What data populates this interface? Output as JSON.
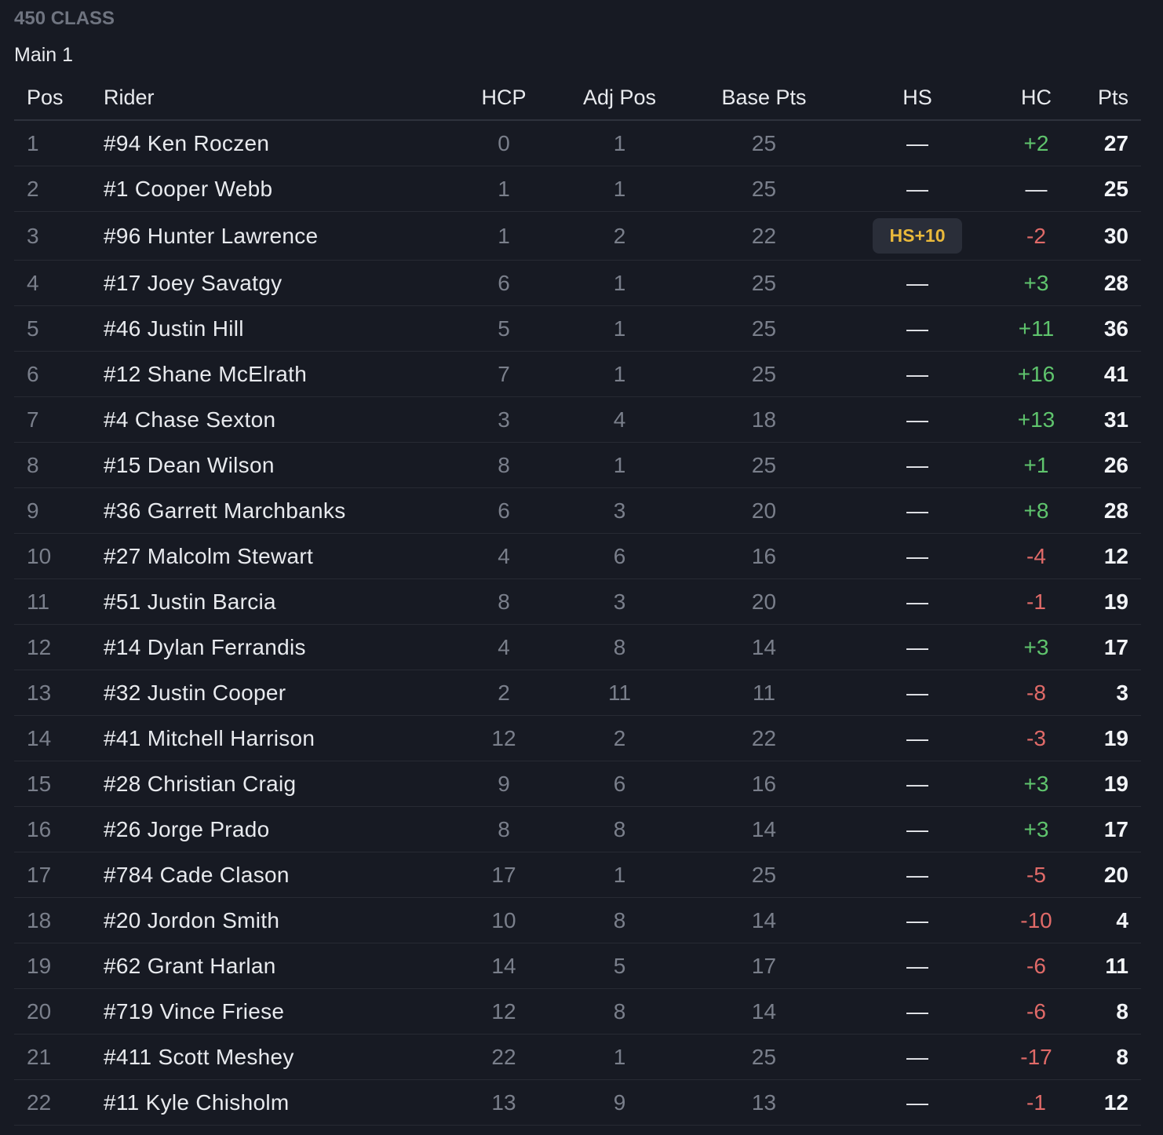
{
  "header": {
    "class_title": "450 CLASS",
    "session_title": "Main 1"
  },
  "columns": {
    "pos": "Pos",
    "rider": "Rider",
    "hcp": "HCP",
    "adj_pos": "Adj Pos",
    "base_pts": "Base Pts",
    "hs": "HS",
    "hc": "HC",
    "pts": "Pts"
  },
  "rows": [
    {
      "pos": "1",
      "rider": "#94 Ken Roczen",
      "hcp": "0",
      "adj_pos": "1",
      "base_pts": "25",
      "hs": "—",
      "hc": "+2",
      "pts": "27"
    },
    {
      "pos": "2",
      "rider": "#1 Cooper Webb",
      "hcp": "1",
      "adj_pos": "1",
      "base_pts": "25",
      "hs": "—",
      "hc": "—",
      "pts": "25"
    },
    {
      "pos": "3",
      "rider": "#96 Hunter Lawrence",
      "hcp": "1",
      "adj_pos": "2",
      "base_pts": "22",
      "hs": "HS+10",
      "hc": "-2",
      "pts": "30"
    },
    {
      "pos": "4",
      "rider": "#17 Joey Savatgy",
      "hcp": "6",
      "adj_pos": "1",
      "base_pts": "25",
      "hs": "—",
      "hc": "+3",
      "pts": "28"
    },
    {
      "pos": "5",
      "rider": "#46 Justin Hill",
      "hcp": "5",
      "adj_pos": "1",
      "base_pts": "25",
      "hs": "—",
      "hc": "+11",
      "pts": "36"
    },
    {
      "pos": "6",
      "rider": "#12 Shane McElrath",
      "hcp": "7",
      "adj_pos": "1",
      "base_pts": "25",
      "hs": "—",
      "hc": "+16",
      "pts": "41"
    },
    {
      "pos": "7",
      "rider": "#4 Chase Sexton",
      "hcp": "3",
      "adj_pos": "4",
      "base_pts": "18",
      "hs": "—",
      "hc": "+13",
      "pts": "31"
    },
    {
      "pos": "8",
      "rider": "#15 Dean Wilson",
      "hcp": "8",
      "adj_pos": "1",
      "base_pts": "25",
      "hs": "—",
      "hc": "+1",
      "pts": "26"
    },
    {
      "pos": "9",
      "rider": "#36 Garrett Marchbanks",
      "hcp": "6",
      "adj_pos": "3",
      "base_pts": "20",
      "hs": "—",
      "hc": "+8",
      "pts": "28"
    },
    {
      "pos": "10",
      "rider": "#27 Malcolm Stewart",
      "hcp": "4",
      "adj_pos": "6",
      "base_pts": "16",
      "hs": "—",
      "hc": "-4",
      "pts": "12"
    },
    {
      "pos": "11",
      "rider": "#51 Justin Barcia",
      "hcp": "8",
      "adj_pos": "3",
      "base_pts": "20",
      "hs": "—",
      "hc": "-1",
      "pts": "19"
    },
    {
      "pos": "12",
      "rider": "#14 Dylan Ferrandis",
      "hcp": "4",
      "adj_pos": "8",
      "base_pts": "14",
      "hs": "—",
      "hc": "+3",
      "pts": "17"
    },
    {
      "pos": "13",
      "rider": "#32 Justin Cooper",
      "hcp": "2",
      "adj_pos": "11",
      "base_pts": "11",
      "hs": "—",
      "hc": "-8",
      "pts": "3"
    },
    {
      "pos": "14",
      "rider": "#41 Mitchell Harrison",
      "hcp": "12",
      "adj_pos": "2",
      "base_pts": "22",
      "hs": "—",
      "hc": "-3",
      "pts": "19"
    },
    {
      "pos": "15",
      "rider": "#28 Christian Craig",
      "hcp": "9",
      "adj_pos": "6",
      "base_pts": "16",
      "hs": "—",
      "hc": "+3",
      "pts": "19"
    },
    {
      "pos": "16",
      "rider": "#26 Jorge Prado",
      "hcp": "8",
      "adj_pos": "8",
      "base_pts": "14",
      "hs": "—",
      "hc": "+3",
      "pts": "17"
    },
    {
      "pos": "17",
      "rider": "#784 Cade Clason",
      "hcp": "17",
      "adj_pos": "1",
      "base_pts": "25",
      "hs": "—",
      "hc": "-5",
      "pts": "20"
    },
    {
      "pos": "18",
      "rider": "#20 Jordon Smith",
      "hcp": "10",
      "adj_pos": "8",
      "base_pts": "14",
      "hs": "—",
      "hc": "-10",
      "pts": "4"
    },
    {
      "pos": "19",
      "rider": "#62 Grant Harlan",
      "hcp": "14",
      "adj_pos": "5",
      "base_pts": "17",
      "hs": "—",
      "hc": "-6",
      "pts": "11"
    },
    {
      "pos": "20",
      "rider": "#719 Vince Friese",
      "hcp": "12",
      "adj_pos": "8",
      "base_pts": "14",
      "hs": "—",
      "hc": "-6",
      "pts": "8"
    },
    {
      "pos": "21",
      "rider": "#411 Scott Meshey",
      "hcp": "22",
      "adj_pos": "1",
      "base_pts": "25",
      "hs": "—",
      "hc": "-17",
      "pts": "8"
    },
    {
      "pos": "22",
      "rider": "#11 Kyle Chisholm",
      "hcp": "13",
      "adj_pos": "9",
      "base_pts": "13",
      "hs": "—",
      "hc": "-1",
      "pts": "12"
    }
  ],
  "colors": {
    "background": "#171a23",
    "positive": "#5fc46d",
    "negative": "#e06a68",
    "badge_text": "#e9b93b",
    "badge_bg": "#2a2e39"
  }
}
